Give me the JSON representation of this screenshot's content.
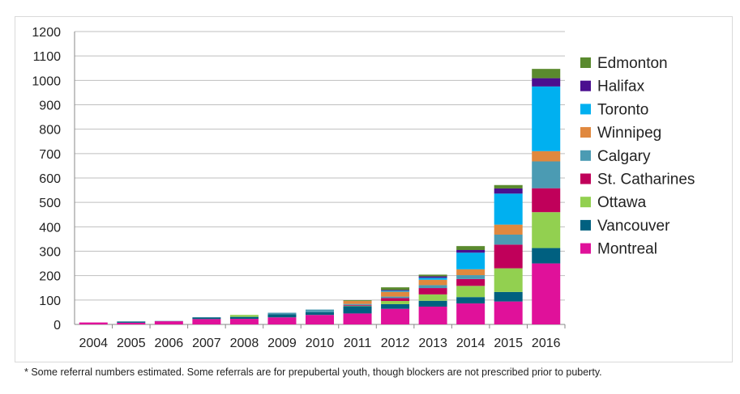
{
  "chart_data": {
    "type": "bar",
    "stacked": true,
    "categories": [
      "2004",
      "2005",
      "2006",
      "2007",
      "2008",
      "2009",
      "2010",
      "2011",
      "2012",
      "2013",
      "2014",
      "2015",
      "2016"
    ],
    "ylim": [
      0,
      1200
    ],
    "yticks": [
      0,
      100,
      200,
      300,
      400,
      500,
      600,
      700,
      800,
      900,
      1000,
      1100,
      1200
    ],
    "grid": true,
    "legend": "right",
    "series": [
      {
        "name": "Montreal",
        "color": "#e0119a",
        "values": [
          8,
          7,
          13,
          22,
          23,
          29,
          39,
          45,
          64,
          73,
          86,
          94,
          250
        ]
      },
      {
        "name": "Vancouver",
        "color": "#006080",
        "values": [
          0,
          5,
          1,
          7,
          8,
          13,
          11,
          30,
          19,
          24,
          26,
          39,
          63
        ]
      },
      {
        "name": "Ottawa",
        "color": "#92d050",
        "values": [
          0,
          0,
          0,
          0,
          8,
          0,
          0,
          2,
          13,
          26,
          46,
          97,
          147
        ]
      },
      {
        "name": "St. Catharines",
        "color": "#c0005a",
        "values": [
          0,
          0,
          0,
          0,
          0,
          0,
          0,
          3,
          12,
          26,
          28,
          97,
          98
        ]
      },
      {
        "name": "Calgary",
        "color": "#4b9bb3",
        "values": [
          0,
          0,
          0,
          0,
          0,
          6,
          11,
          4,
          6,
          12,
          16,
          41,
          110
        ]
      },
      {
        "name": "Winnipeg",
        "color": "#e0883e",
        "values": [
          0,
          0,
          0,
          0,
          0,
          0,
          0,
          12,
          20,
          22,
          24,
          41,
          42
        ]
      },
      {
        "name": "Toronto",
        "color": "#00b0f0",
        "values": [
          0,
          0,
          0,
          0,
          0,
          0,
          0,
          0,
          4,
          8,
          68,
          127,
          265
        ]
      },
      {
        "name": "Halifax",
        "color": "#4b0f8f",
        "values": [
          0,
          0,
          0,
          0,
          0,
          0,
          0,
          0,
          3,
          6,
          11,
          21,
          34
        ]
      },
      {
        "name": "Edmonton",
        "color": "#5a8a2e",
        "values": [
          0,
          0,
          0,
          0,
          0,
          0,
          0,
          3,
          11,
          7,
          16,
          14,
          38
        ]
      }
    ]
  },
  "footnote": "* Some referral numbers estimated. Some referrals are for prepubertal youth, though blockers are not prescribed prior to puberty."
}
